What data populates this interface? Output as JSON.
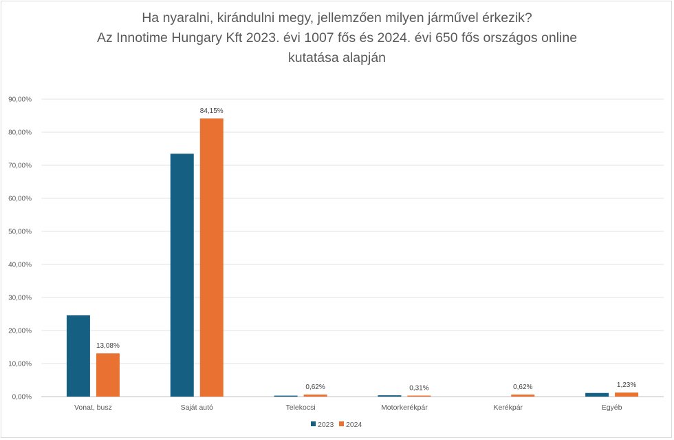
{
  "chart_data": {
    "type": "bar",
    "title_lines": [
      "Ha nyaralni, kirándulni megy, jellemzően milyen járművel érkezik?",
      "Az Innotime Hungary Kft 2023. évi 1007 fős és 2024. évi 650 fős országos online",
      "kutatása alapján"
    ],
    "categories": [
      "Vonat, busz",
      "Saját autó",
      "Telekocsi",
      "Motorkerékpár",
      "Kerékpár",
      "Egyéb"
    ],
    "series": [
      {
        "name": "2023",
        "color": "#156082",
        "values": [
          24.6,
          73.5,
          0.3,
          0.4,
          0.0,
          1.1
        ],
        "labels": [
          null,
          null,
          null,
          null,
          null,
          null
        ]
      },
      {
        "name": "2024",
        "color": "#E97132",
        "values": [
          13.08,
          84.15,
          0.62,
          0.31,
          0.62,
          1.23
        ],
        "labels": [
          "13,08%",
          "84,15%",
          "0,62%",
          "0,31%",
          "0,62%",
          "1,23%"
        ]
      }
    ],
    "yticks": [
      "0,00%",
      "10,00%",
      "20,00%",
      "30,00%",
      "40,00%",
      "50,00%",
      "60,00%",
      "70,00%",
      "80,00%",
      "90,00%"
    ],
    "ylim": [
      0,
      90
    ],
    "xlabel": "",
    "ylabel": "",
    "grid": true,
    "legend_position": "bottom"
  }
}
